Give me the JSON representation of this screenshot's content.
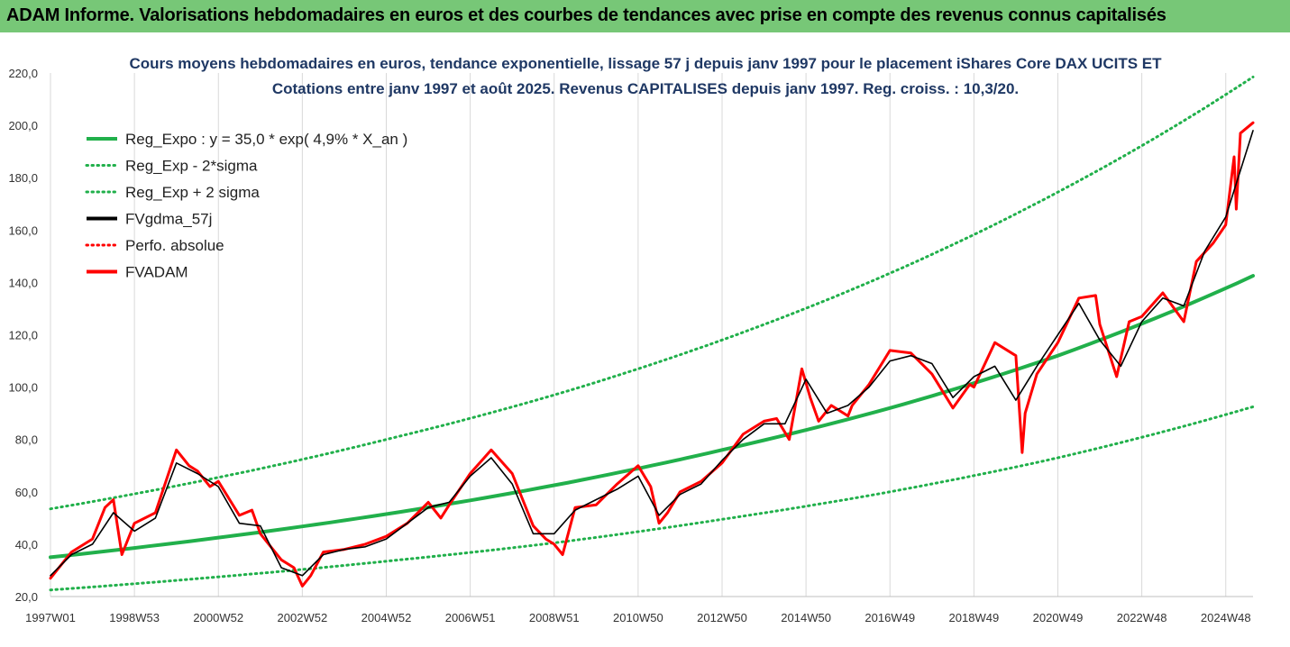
{
  "banner": {
    "title": "ADAM Informe. Valorisations hebdomadaires en euros et des courbes de tendances avec prise en compte des revenus connus capitalisés"
  },
  "chart_data": {
    "type": "line",
    "title_line1": "Cours moyens hebdomadaires en euros, tendance exponentielle, lissage 57 j depuis janv 1997 pour le placement iShares Core DAX UCITS ET",
    "title_line2": "Cotations entre janv 1997 et août 2025. Revenus CAPITALISES depuis janv 1997. Reg. croiss. : 10,3/20.",
    "ylim": [
      20,
      220
    ],
    "y_ticks": [
      "20,0",
      "40,0",
      "60,0",
      "80,0",
      "100,0",
      "120,0",
      "140,0",
      "160,0",
      "180,0",
      "200,0",
      "220,0"
    ],
    "x_ticks": [
      "1997W01",
      "1998W53",
      "2000W52",
      "2002W52",
      "2004W52",
      "2006W51",
      "2008W51",
      "2010W50",
      "2012W50",
      "2014W50",
      "2016W49",
      "2018W49",
      "2020W49",
      "2022W48",
      "2024W48"
    ],
    "x_tick_years": [
      1997.0,
      1999.0,
      2001.0,
      2003.0,
      2005.0,
      2007.0,
      2009.0,
      2011.0,
      2013.0,
      2015.0,
      2017.0,
      2019.0,
      2021.0,
      2023.0,
      2025.0
    ],
    "xlim": [
      1997.0,
      2025.65
    ],
    "grid": "vertical",
    "legend_position": "top-left",
    "series": [
      {
        "name": "Reg_Expo : y = 35,0 * exp( 4,9% *  X_an )",
        "color": "#21b04b",
        "style": "solid",
        "x": [
          1997,
          2001,
          2005,
          2009,
          2013,
          2017,
          2021,
          2025.65
        ],
        "values": [
          35.0,
          42.5,
          51.5,
          62.5,
          76.0,
          92.0,
          112.0,
          142.5
        ]
      },
      {
        "name": "Reg_Exp - 2*sigma",
        "color": "#21b04b",
        "style": "dotted",
        "x": [
          1997,
          2001,
          2005,
          2009,
          2013,
          2017,
          2021,
          2025.65
        ],
        "values": [
          22.5,
          27.5,
          33.5,
          40.5,
          49.5,
          60.0,
          73.0,
          92.5
        ]
      },
      {
        "name": "Reg_Exp + 2 sigma",
        "color": "#21b04b",
        "style": "dotted",
        "x": [
          1997,
          2001,
          2005,
          2009,
          2013,
          2017,
          2021,
          2025.65
        ],
        "values": [
          53.5,
          65.5,
          80.0,
          97.0,
          118.0,
          143.5,
          174.5,
          218.5
        ]
      },
      {
        "name": "FVgdma_57j",
        "color": "#000000",
        "style": "solid",
        "x": [
          1997.0,
          1997.5,
          1998.0,
          1998.5,
          1999.0,
          1999.5,
          2000.0,
          2000.5,
          2001.0,
          2001.5,
          2002.0,
          2002.5,
          2003.0,
          2003.5,
          2004.0,
          2004.5,
          2005.0,
          2005.5,
          2006.0,
          2006.5,
          2007.0,
          2007.5,
          2008.0,
          2008.5,
          2009.0,
          2009.5,
          2010.0,
          2010.5,
          2011.0,
          2011.5,
          2012.0,
          2012.5,
          2013.0,
          2013.5,
          2014.0,
          2014.5,
          2015.0,
          2015.5,
          2016.0,
          2016.5,
          2017.0,
          2017.5,
          2018.0,
          2018.5,
          2019.0,
          2019.5,
          2020.0,
          2020.5,
          2021.0,
          2021.5,
          2022.0,
          2022.5,
          2023.0,
          2023.5,
          2024.0,
          2024.5,
          2025.0,
          2025.65
        ],
        "values": [
          28,
          36,
          40,
          52,
          45,
          50,
          71,
          67,
          62,
          48,
          47,
          31,
          28,
          36,
          38,
          39,
          42,
          48,
          54,
          56,
          66,
          73,
          63,
          44,
          44,
          53,
          57,
          61,
          66,
          51,
          59,
          63,
          72,
          80,
          86,
          86,
          103,
          90,
          93,
          100,
          110,
          112,
          109,
          96,
          104,
          108,
          95,
          108,
          120,
          132,
          118,
          108,
          125,
          134,
          131,
          152,
          165,
          198
        ]
      },
      {
        "name": "Perfo. absolue",
        "color": "#ff0000",
        "style": "dotted",
        "x": [],
        "values": []
      },
      {
        "name": "FVADAM",
        "color": "#ff0000",
        "style": "solid",
        "x": [
          1997.0,
          1997.5,
          1998.0,
          1998.3,
          1998.5,
          1998.7,
          1999.0,
          1999.5,
          2000.0,
          2000.3,
          2000.5,
          2000.8,
          2001.0,
          2001.5,
          2001.8,
          2002.0,
          2002.5,
          2002.8,
          2003.0,
          2003.2,
          2003.5,
          2004.0,
          2004.5,
          2005.0,
          2005.5,
          2006.0,
          2006.3,
          2006.5,
          2007.0,
          2007.5,
          2008.0,
          2008.5,
          2008.8,
          2009.0,
          2009.2,
          2009.5,
          2010.0,
          2010.5,
          2011.0,
          2011.3,
          2011.5,
          2011.7,
          2012.0,
          2012.5,
          2013.0,
          2013.5,
          2014.0,
          2014.3,
          2014.6,
          2014.9,
          2015.1,
          2015.3,
          2015.6,
          2016.0,
          2016.1,
          2016.5,
          2017.0,
          2017.5,
          2018.0,
          2018.5,
          2018.9,
          2019.0,
          2019.5,
          2020.0,
          2020.15,
          2020.22,
          2020.5,
          2021.0,
          2021.5,
          2021.9,
          2022.0,
          2022.4,
          2022.7,
          2023.0,
          2023.5,
          2024.0,
          2024.3,
          2024.7,
          2025.0,
          2025.2,
          2025.25,
          2025.35,
          2025.65
        ],
        "values": [
          27,
          37,
          42,
          54,
          57,
          36,
          48,
          52,
          76,
          70,
          68,
          62,
          64,
          51,
          53,
          44,
          34,
          31,
          24,
          28,
          37,
          38,
          40,
          43,
          48,
          56,
          50,
          55,
          67,
          76,
          67,
          47,
          42,
          40,
          36,
          54,
          55,
          63,
          70,
          62,
          48,
          52,
          60,
          64,
          71,
          82,
          87,
          88,
          80,
          107,
          96,
          87,
          93,
          89,
          93,
          101,
          114,
          113,
          105,
          92,
          101,
          100,
          117,
          112,
          75,
          90,
          105,
          117,
          134,
          135,
          124,
          104,
          125,
          127,
          136,
          125,
          148,
          155,
          162,
          188,
          168,
          197,
          201
        ]
      }
    ]
  }
}
